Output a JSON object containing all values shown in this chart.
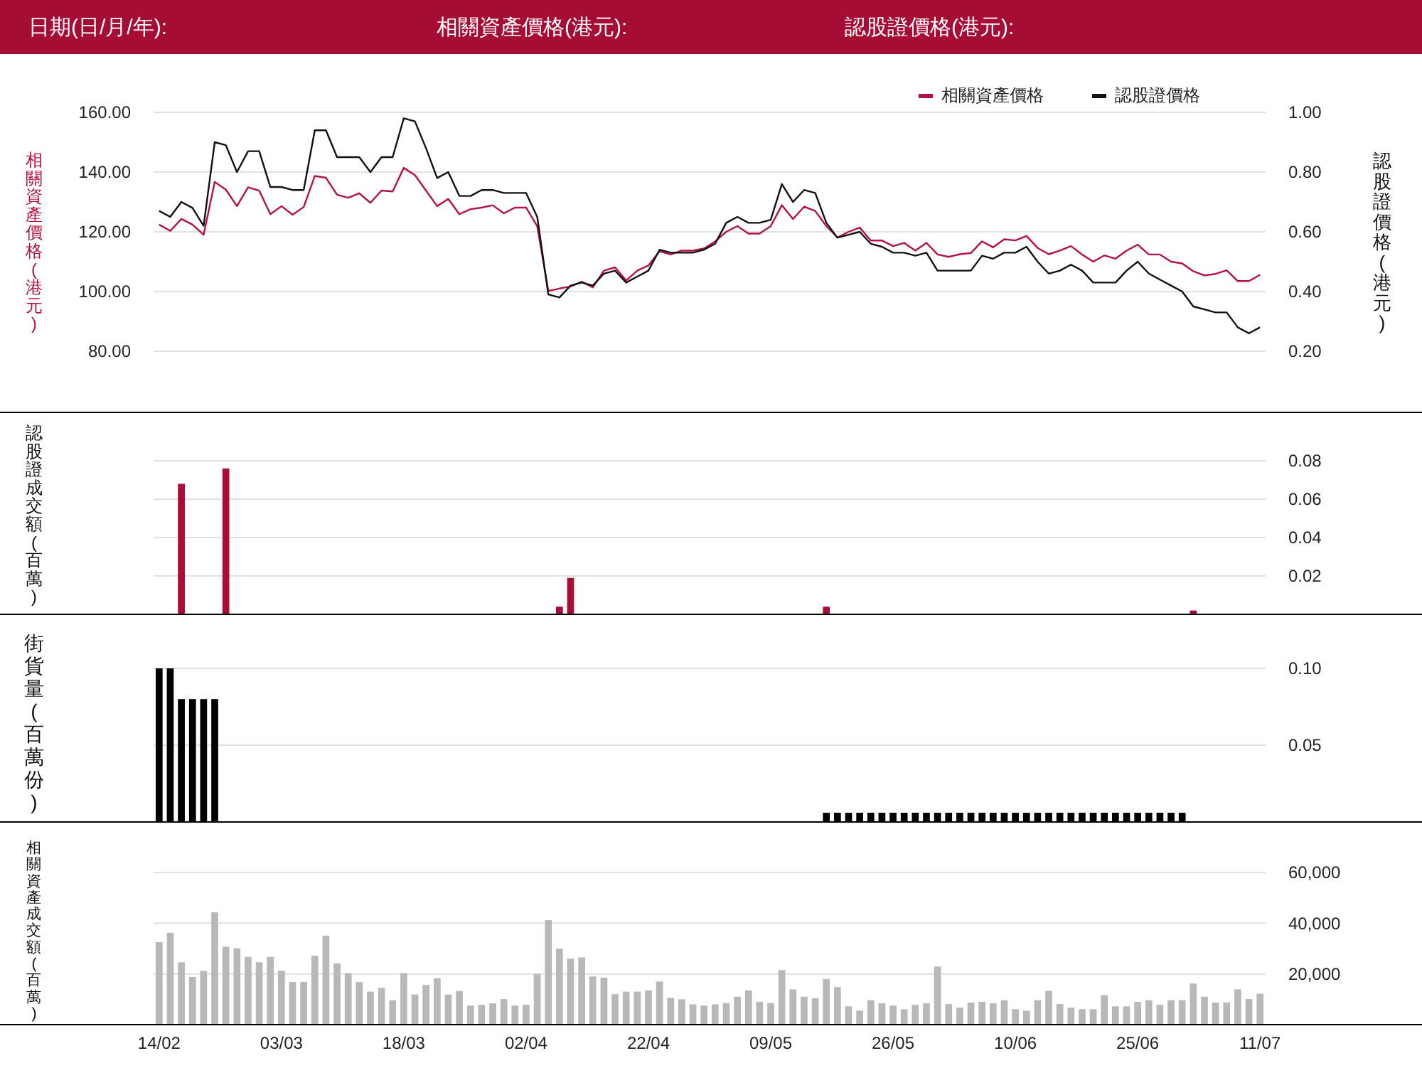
{
  "chart_data": [
    {
      "type": "line",
      "annotations": [
        "日期(日/月/年):",
        "相關資產價格(港元):",
        "認股證價格(港元):"
      ],
      "ylabel": "相關資產價格(港元)",
      "y2label": "認股證價格(港元)",
      "categories": [
        null,
        null,
        null,
        null,
        null,
        null,
        null,
        null,
        null,
        null,
        null,
        null,
        null,
        null,
        null,
        null,
        null,
        null,
        null,
        null,
        null,
        null,
        null,
        null,
        null,
        null,
        null,
        null,
        null,
        null,
        null,
        null,
        null,
        null,
        null,
        null,
        null,
        null,
        null,
        null,
        null,
        null,
        null,
        null,
        null,
        null,
        null,
        null,
        null,
        null,
        null,
        null,
        null,
        null,
        null,
        null,
        null,
        null,
        null,
        null,
        null,
        null,
        null,
        null,
        null,
        null,
        null,
        null,
        null,
        null,
        null,
        null,
        null,
        null,
        null,
        null,
        null,
        null,
        null,
        null,
        null,
        null,
        null,
        null,
        null,
        null,
        null,
        null,
        null,
        null,
        null,
        null,
        null,
        null,
        null,
        null,
        null,
        null,
        null,
        null
      ],
      "series": [
        {
          "name": "相關資產價格",
          "color": "#b5123e",
          "values": [
            122.4,
            120.3,
            124.3,
            122.4,
            119.0,
            136.7,
            134.1,
            128.6,
            134.9,
            133.8,
            125.9,
            128.6,
            125.7,
            128.3,
            138.7,
            138.1,
            132.4,
            131.4,
            132.9,
            129.7,
            133.8,
            133.5,
            141.4,
            139.0,
            133.8,
            128.6,
            131.0,
            125.9,
            127.6,
            128.1,
            128.9,
            126.2,
            128.1,
            128.1,
            121.9,
            100.2,
            101.0,
            101.7,
            103.3,
            101.4,
            107.0,
            108.1,
            103.7,
            107.0,
            108.7,
            113.5,
            112.4,
            113.7,
            113.7,
            114.4,
            116.8,
            120.0,
            121.9,
            119.4,
            119.4,
            121.9,
            128.9,
            124.3,
            128.4,
            127.0,
            121.9,
            118.1,
            120.0,
            121.4,
            117.1,
            117.1,
            115.2,
            116.3,
            113.7,
            116.3,
            112.4,
            111.6,
            112.5,
            112.9,
            116.8,
            114.8,
            117.5,
            117.1,
            118.6,
            114.6,
            112.5,
            113.7,
            115.2,
            112.4,
            110.0,
            112.1,
            111.0,
            113.7,
            115.7,
            112.4,
            112.4,
            110.0,
            109.4,
            106.8,
            105.4,
            105.9,
            107.1,
            103.5,
            103.5,
            105.6
          ]
        },
        {
          "name": "認股證價格",
          "color": "#111111",
          "axis": "y2",
          "values": [
            0.67,
            0.65,
            0.7,
            0.68,
            0.62,
            0.9,
            0.89,
            0.8,
            0.87,
            0.87,
            0.75,
            0.75,
            0.74,
            0.74,
            0.94,
            0.94,
            0.85,
            0.85,
            0.85,
            0.8,
            0.85,
            0.85,
            0.98,
            0.97,
            0.88,
            0.78,
            0.8,
            0.72,
            0.72,
            0.74,
            0.74,
            0.73,
            0.73,
            0.73,
            0.65,
            0.39,
            0.38,
            0.42,
            0.43,
            0.42,
            0.46,
            0.47,
            0.43,
            0.45,
            0.47,
            0.54,
            0.53,
            0.53,
            0.53,
            0.54,
            0.56,
            0.63,
            0.65,
            0.63,
            0.63,
            0.64,
            0.76,
            0.7,
            0.74,
            0.73,
            0.63,
            0.58,
            0.59,
            0.6,
            0.56,
            0.55,
            0.53,
            0.53,
            0.52,
            0.53,
            0.47,
            0.47,
            0.47,
            0.47,
            0.52,
            0.51,
            0.53,
            0.53,
            0.55,
            0.5,
            0.46,
            0.47,
            0.49,
            0.47,
            0.43,
            0.43,
            0.43,
            0.47,
            0.5,
            0.46,
            0.44,
            0.42,
            0.4,
            0.35,
            0.34,
            0.33,
            0.33,
            0.28,
            0.26,
            0.28
          ]
        }
      ],
      "ylim": [
        80,
        160
      ],
      "yticks": [
        {
          "value": 80,
          "label": "80.00"
        },
        {
          "value": 100,
          "label": "100.00"
        },
        {
          "value": 120,
          "label": "120.00"
        },
        {
          "value": 140,
          "label": "140.00"
        },
        {
          "value": 160,
          "label": "160.00"
        }
      ],
      "y2lim": [
        0.2,
        1.0
      ],
      "y2ticks": [
        {
          "value": 0.2,
          "label": "0.20"
        },
        {
          "value": 0.4,
          "label": "0.40"
        },
        {
          "value": 0.6,
          "label": "0.60"
        },
        {
          "value": 0.8,
          "label": "0.80"
        },
        {
          "value": 1,
          "label": "1.00"
        }
      ],
      "grid": "y",
      "legend": "top right",
      "tick_labels": "y"
    },
    {
      "type": "bar",
      "ylabel": "認股證成交額(百萬)",
      "color": "#a80d36",
      "categories": [
        null,
        null,
        null,
        null,
        null,
        null,
        null,
        null,
        null,
        null,
        null,
        null,
        null,
        null,
        null,
        null,
        null,
        null,
        null,
        null,
        null,
        null,
        null,
        null,
        null,
        null,
        null,
        null,
        null,
        null,
        null,
        null,
        null,
        null,
        null,
        null,
        null,
        null,
        null,
        null,
        null,
        null,
        null,
        null,
        null,
        null,
        null,
        null,
        null,
        null,
        null,
        null,
        null,
        null,
        null,
        null,
        null,
        null,
        null,
        null,
        null,
        null,
        null,
        null,
        null,
        null,
        null,
        null,
        null,
        null,
        null,
        null,
        null,
        null,
        null,
        null,
        null,
        null,
        null,
        null,
        null,
        null,
        null,
        null,
        null,
        null,
        null,
        null,
        null,
        null,
        null,
        null,
        null,
        null,
        null,
        null,
        null,
        null,
        null,
        null
      ],
      "values": [
        null,
        null,
        0.068,
        null,
        null,
        null,
        0.076,
        null,
        null,
        null,
        null,
        null,
        null,
        null,
        null,
        null,
        null,
        null,
        null,
        null,
        null,
        null,
        null,
        null,
        null,
        null,
        null,
        null,
        null,
        null,
        null,
        null,
        null,
        null,
        null,
        null,
        0.004,
        0.019,
        null,
        null,
        null,
        null,
        null,
        null,
        null,
        null,
        null,
        null,
        null,
        null,
        null,
        null,
        null,
        null,
        null,
        null,
        null,
        null,
        null,
        null,
        0.004,
        null,
        null,
        null,
        null,
        null,
        null,
        null,
        null,
        null,
        null,
        null,
        null,
        null,
        null,
        null,
        null,
        null,
        null,
        null,
        null,
        null,
        null,
        null,
        null,
        null,
        null,
        null,
        null,
        null,
        null,
        null,
        null,
        0.002,
        null,
        null,
        null,
        null,
        null,
        null
      ],
      "ylim": [
        0,
        0.08
      ],
      "yticks": [
        {
          "value": 0.02,
          "label": "0.02"
        },
        {
          "value": 0.04,
          "label": "0.04"
        },
        {
          "value": 0.06,
          "label": "0.06"
        },
        {
          "value": 0.08,
          "label": "0.08"
        }
      ],
      "grid": "y",
      "tick_labels": "y"
    },
    {
      "type": "bar",
      "ylabel": "街貨量(百萬份)",
      "color": "#000000",
      "categories": [
        null,
        null,
        null,
        null,
        null,
        null,
        null,
        null,
        null,
        null,
        null,
        null,
        null,
        null,
        null,
        null,
        null,
        null,
        null,
        null,
        null,
        null,
        null,
        null,
        null,
        null,
        null,
        null,
        null,
        null,
        null,
        null,
        null,
        null,
        null,
        null,
        null,
        null,
        null,
        null,
        null,
        null,
        null,
        null,
        null,
        null,
        null,
        null,
        null,
        null,
        null,
        null,
        null,
        null,
        null,
        null,
        null,
        null,
        null,
        null,
        null,
        null,
        null,
        null,
        null,
        null,
        null,
        null,
        null,
        null,
        null,
        null,
        null,
        null,
        null,
        null,
        null,
        null,
        null,
        null,
        null,
        null,
        null,
        null,
        null,
        null,
        null,
        null,
        null,
        null,
        null,
        null,
        null,
        null,
        null,
        null,
        null,
        null,
        null,
        null
      ],
      "values": [
        0.1,
        0.1,
        0.08,
        0.08,
        0.08,
        0.08,
        null,
        null,
        null,
        null,
        null,
        null,
        null,
        null,
        null,
        null,
        null,
        null,
        null,
        null,
        null,
        null,
        null,
        null,
        null,
        null,
        null,
        null,
        null,
        null,
        null,
        null,
        null,
        null,
        null,
        null,
        null,
        null,
        null,
        null,
        null,
        null,
        null,
        null,
        null,
        null,
        null,
        null,
        null,
        null,
        null,
        null,
        null,
        null,
        null,
        null,
        null,
        null,
        null,
        null,
        0.006,
        0.006,
        0.006,
        0.006,
        0.006,
        0.006,
        0.006,
        0.006,
        0.006,
        0.006,
        0.006,
        0.006,
        0.006,
        0.006,
        0.006,
        0.006,
        0.006,
        0.006,
        0.006,
        0.006,
        0.006,
        0.006,
        0.006,
        0.006,
        0.006,
        0.006,
        0.006,
        0.006,
        0.006,
        0.006,
        0.006,
        0.006,
        0.006,
        null,
        null,
        null,
        null,
        null,
        null,
        null
      ],
      "ylim": [
        0,
        0.1
      ],
      "yticks": [
        {
          "value": 0.05,
          "label": "0.05"
        },
        {
          "value": 0.1,
          "label": "0.10"
        }
      ],
      "grid": "y",
      "tick_labels": "y"
    },
    {
      "type": "bar",
      "ylabel": "相關資產成交額(百萬)",
      "color": "#b8b8b8",
      "categories": [
        "14/02",
        null,
        null,
        null,
        null,
        null,
        null,
        null,
        null,
        null,
        null,
        "03/03",
        null,
        null,
        null,
        null,
        null,
        null,
        null,
        null,
        null,
        null,
        "18/03",
        null,
        null,
        null,
        null,
        null,
        null,
        null,
        null,
        null,
        null,
        "02/04",
        null,
        null,
        null,
        null,
        null,
        null,
        null,
        null,
        null,
        null,
        "22/04",
        null,
        null,
        null,
        null,
        null,
        null,
        null,
        null,
        null,
        null,
        "09/05",
        null,
        null,
        null,
        null,
        null,
        null,
        null,
        null,
        null,
        null,
        "26/05",
        null,
        null,
        null,
        null,
        null,
        null,
        null,
        null,
        null,
        null,
        "10/06",
        null,
        null,
        null,
        null,
        null,
        null,
        null,
        null,
        null,
        null,
        "25/06",
        null,
        null,
        null,
        null,
        null,
        null,
        null,
        null,
        null,
        null,
        "11/07"
      ],
      "values": [
        32500,
        36200,
        24600,
        18800,
        21200,
        44300,
        30700,
        30100,
        26700,
        24600,
        26700,
        21200,
        16800,
        16800,
        27200,
        35100,
        24100,
        20300,
        16800,
        13000,
        14500,
        9600,
        20300,
        11900,
        15700,
        18300,
        11900,
        13300,
        7500,
        7800,
        8400,
        10100,
        7500,
        7800,
        20000,
        41200,
        30000,
        26000,
        26500,
        19000,
        18500,
        12000,
        13000,
        13000,
        13500,
        17000,
        10500,
        10000,
        8000,
        7500,
        8000,
        8500,
        11000,
        13500,
        9000,
        8500,
        21500,
        13900,
        11000,
        10400,
        18000,
        14800,
        7200,
        5500,
        9600,
        8400,
        7500,
        6100,
        7800,
        8400,
        22900,
        8100,
        6700,
        8700,
        9000,
        8400,
        9600,
        6100,
        5500,
        9600,
        13300,
        8100,
        6700,
        6100,
        6100,
        11600,
        7200,
        7200,
        9000,
        9600,
        7800,
        9600,
        9600,
        16200,
        11000,
        8700,
        8700,
        13900,
        10100,
        12200
      ],
      "ylim": [
        0,
        60000
      ],
      "yticks": [
        {
          "value": 20000,
          "label": "20,000"
        },
        {
          "value": 40000,
          "label": "40,000"
        },
        {
          "value": 60000,
          "label": "60,000"
        }
      ],
      "grid": "y"
    }
  ]
}
